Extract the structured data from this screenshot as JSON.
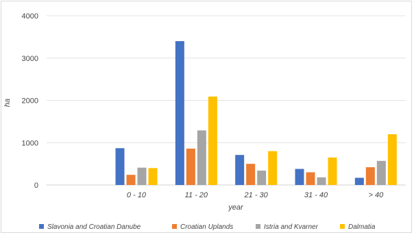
{
  "chart_data": {
    "type": "bar",
    "title": "",
    "xlabel": "year",
    "ylabel": "ha",
    "ylim": [
      0,
      4000
    ],
    "yticks": [
      0,
      1000,
      2000,
      3000,
      4000
    ],
    "grid": true,
    "legend_position": "bottom",
    "categories": [
      "",
      "0 - 10",
      "11 - 20",
      "21 - 30",
      "31 - 40",
      "> 40"
    ],
    "series": [
      {
        "name": "Slavonia and Croatian Danube",
        "color": "#4472c4",
        "values": [
          null,
          870,
          3400,
          710,
          380,
          170
        ]
      },
      {
        "name": "Croatian Uplands",
        "color": "#ed7d31",
        "values": [
          null,
          240,
          860,
          500,
          300,
          420
        ]
      },
      {
        "name": "Istria and Kvarner",
        "color": "#a5a5a5",
        "values": [
          null,
          410,
          1290,
          340,
          180,
          570
        ]
      },
      {
        "name": "Dalmatia",
        "color": "#ffc000",
        "values": [
          null,
          400,
          2090,
          800,
          650,
          1200
        ]
      }
    ]
  }
}
